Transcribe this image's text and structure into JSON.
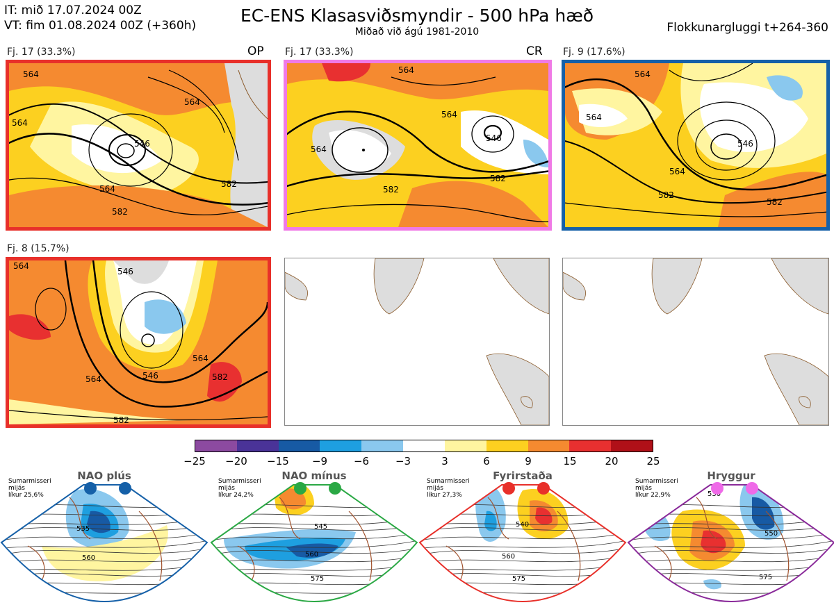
{
  "header": {
    "it_line": "IT: mið 17.07.2024 00Z",
    "vt_line": "VT: fim 01.08.2024 00Z  (+360h)",
    "title": "EC-ENS Klasasviðsmyndir - 500 hPa hæð",
    "subtitle": "Miðað við ágú 1981-2010",
    "window": "Flokkunargluggi t+264-360"
  },
  "panels": [
    {
      "label": "Fj. 17 (33.3%)",
      "tag": "OP",
      "frame_color": "#e8302a",
      "contours": [
        "564",
        "564",
        "546",
        "564",
        "582",
        "582",
        "564"
      ]
    },
    {
      "label": "Fj. 17 (33.3%)",
      "tag": "CR",
      "frame_color": "#f07ae6",
      "contours": [
        "564",
        "564",
        "546",
        "582",
        "582",
        "564"
      ]
    },
    {
      "label": "Fj. 9 (17.6%)",
      "tag": "",
      "frame_color": "#1560a8",
      "contours": [
        "564",
        "564",
        "546",
        "564",
        "582",
        "582"
      ]
    },
    {
      "label": "Fj. 8 (15.7%)",
      "tag": "",
      "frame_color": "#e8302a",
      "contours": [
        "564",
        "546",
        "546",
        "564",
        "564",
        "582",
        "582"
      ]
    }
  ],
  "colorbar": {
    "ticks": [
      "−25",
      "−20",
      "−15",
      "−9",
      "−6",
      "−3",
      "3",
      "6",
      "9",
      "15",
      "20",
      "25"
    ],
    "colors": [
      "#8c4aa0",
      "#4a3398",
      "#175aa4",
      "#1e9fe0",
      "#8ac8ee",
      "#ffffff",
      "#fff5a0",
      "#fcd020",
      "#f58a30",
      "#e83030",
      "#b01018"
    ]
  },
  "regimes": [
    {
      "name": "NAO plús",
      "season": "Sumarmisseri",
      "sub": "mijás",
      "prob": "líkur 25,6%",
      "color": "#1560a8",
      "dot_color": "#1560a8",
      "contours": [
        "535",
        "560"
      ]
    },
    {
      "name": "NAO mínus",
      "season": "Sumarmisseri",
      "sub": "mijás",
      "prob": "líkur 24,2%",
      "color": "#2aa844",
      "dot_color": "#2aa844",
      "contours": [
        "545",
        "560",
        "575"
      ]
    },
    {
      "name": "Fyrirstaða",
      "season": "Sumarmisseri",
      "sub": "mijás",
      "prob": "líkur 27,3%",
      "color": "#e8302a",
      "dot_color": "#e8302a",
      "contours": [
        "540",
        "560",
        "575"
      ]
    },
    {
      "name": "Hryggur",
      "season": "Sumarmisseri",
      "sub": "mijás",
      "prob": "líkur 22,9%",
      "color": "#8a2a9a",
      "dot_color": "#ef6ae8",
      "contours": [
        "530",
        "550",
        "575"
      ]
    }
  ]
}
